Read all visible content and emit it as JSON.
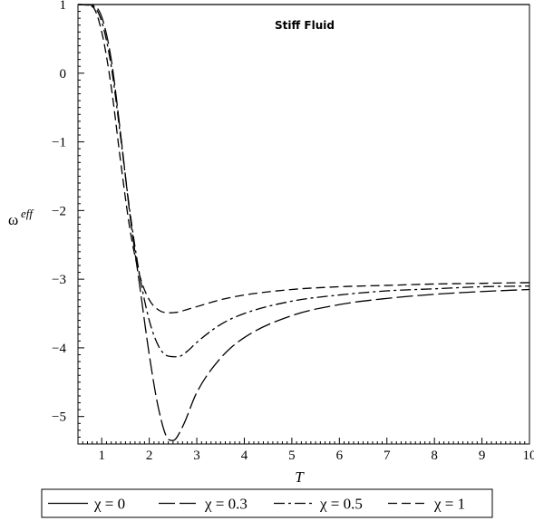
{
  "chart_data": {
    "type": "line",
    "title": "",
    "annotation": "Stiff Fluid",
    "xlabel": "T",
    "ylabel": "ω",
    "ylabel_superscript": "eff",
    "xlim": [
      0.5,
      10
    ],
    "ylim": [
      -5.4,
      1.0
    ],
    "x_ticks": [
      1,
      2,
      3,
      4,
      5,
      6,
      7,
      8,
      9,
      10
    ],
    "y_ticks": [
      1,
      0,
      -1,
      -2,
      -3,
      -4,
      -5
    ],
    "grid": false,
    "legend_position": "bottom",
    "series": [
      {
        "name": "χ = 0",
        "dash": "solid",
        "x": [
          0.5,
          1,
          2,
          3,
          4,
          5,
          6,
          7,
          8,
          9,
          10
        ],
        "y": [
          1,
          1,
          1,
          1,
          1,
          1,
          1,
          1,
          1,
          1,
          1
        ]
      },
      {
        "name": "χ = 0.3",
        "dash": "long-dash",
        "x": [
          0.5,
          0.8,
          1.0,
          1.2,
          1.4,
          1.6,
          1.8,
          2.0,
          2.2,
          2.4,
          2.5,
          2.7,
          3.0,
          3.5,
          4.0,
          5.0,
          6.0,
          7.0,
          8.0,
          9.0,
          10.0
        ],
        "y": [
          1.0,
          0.99,
          0.82,
          0.2,
          -0.9,
          -2.1,
          -3.1,
          -4.1,
          -4.9,
          -5.33,
          -5.35,
          -5.15,
          -4.65,
          -4.15,
          -3.85,
          -3.53,
          -3.37,
          -3.28,
          -3.22,
          -3.18,
          -3.15
        ]
      },
      {
        "name": "χ = 0.5",
        "dash": "dash-dot",
        "x": [
          0.5,
          0.8,
          1.0,
          1.2,
          1.4,
          1.6,
          1.8,
          2.0,
          2.2,
          2.4,
          2.6,
          2.8,
          3.0,
          3.5,
          4.0,
          5.0,
          6.0,
          7.0,
          8.0,
          9.0,
          10.0
        ],
        "y": [
          1.0,
          0.98,
          0.75,
          0.1,
          -0.95,
          -2.05,
          -2.95,
          -3.6,
          -3.98,
          -4.12,
          -4.13,
          -4.05,
          -3.92,
          -3.66,
          -3.5,
          -3.32,
          -3.23,
          -3.17,
          -3.14,
          -3.11,
          -3.1
        ]
      },
      {
        "name": "χ = 1",
        "dash": "dash",
        "x": [
          0.5,
          0.8,
          1.0,
          1.2,
          1.4,
          1.6,
          1.8,
          2.0,
          2.2,
          2.4,
          2.6,
          2.8,
          3.0,
          3.5,
          4.0,
          5.0,
          6.0,
          7.0,
          8.0,
          9.0,
          10.0
        ],
        "y": [
          1.0,
          0.97,
          0.6,
          -0.2,
          -1.3,
          -2.3,
          -2.95,
          -3.3,
          -3.45,
          -3.49,
          -3.48,
          -3.44,
          -3.4,
          -3.3,
          -3.23,
          -3.15,
          -3.11,
          -3.09,
          -3.07,
          -3.06,
          -3.05
        ]
      }
    ]
  }
}
